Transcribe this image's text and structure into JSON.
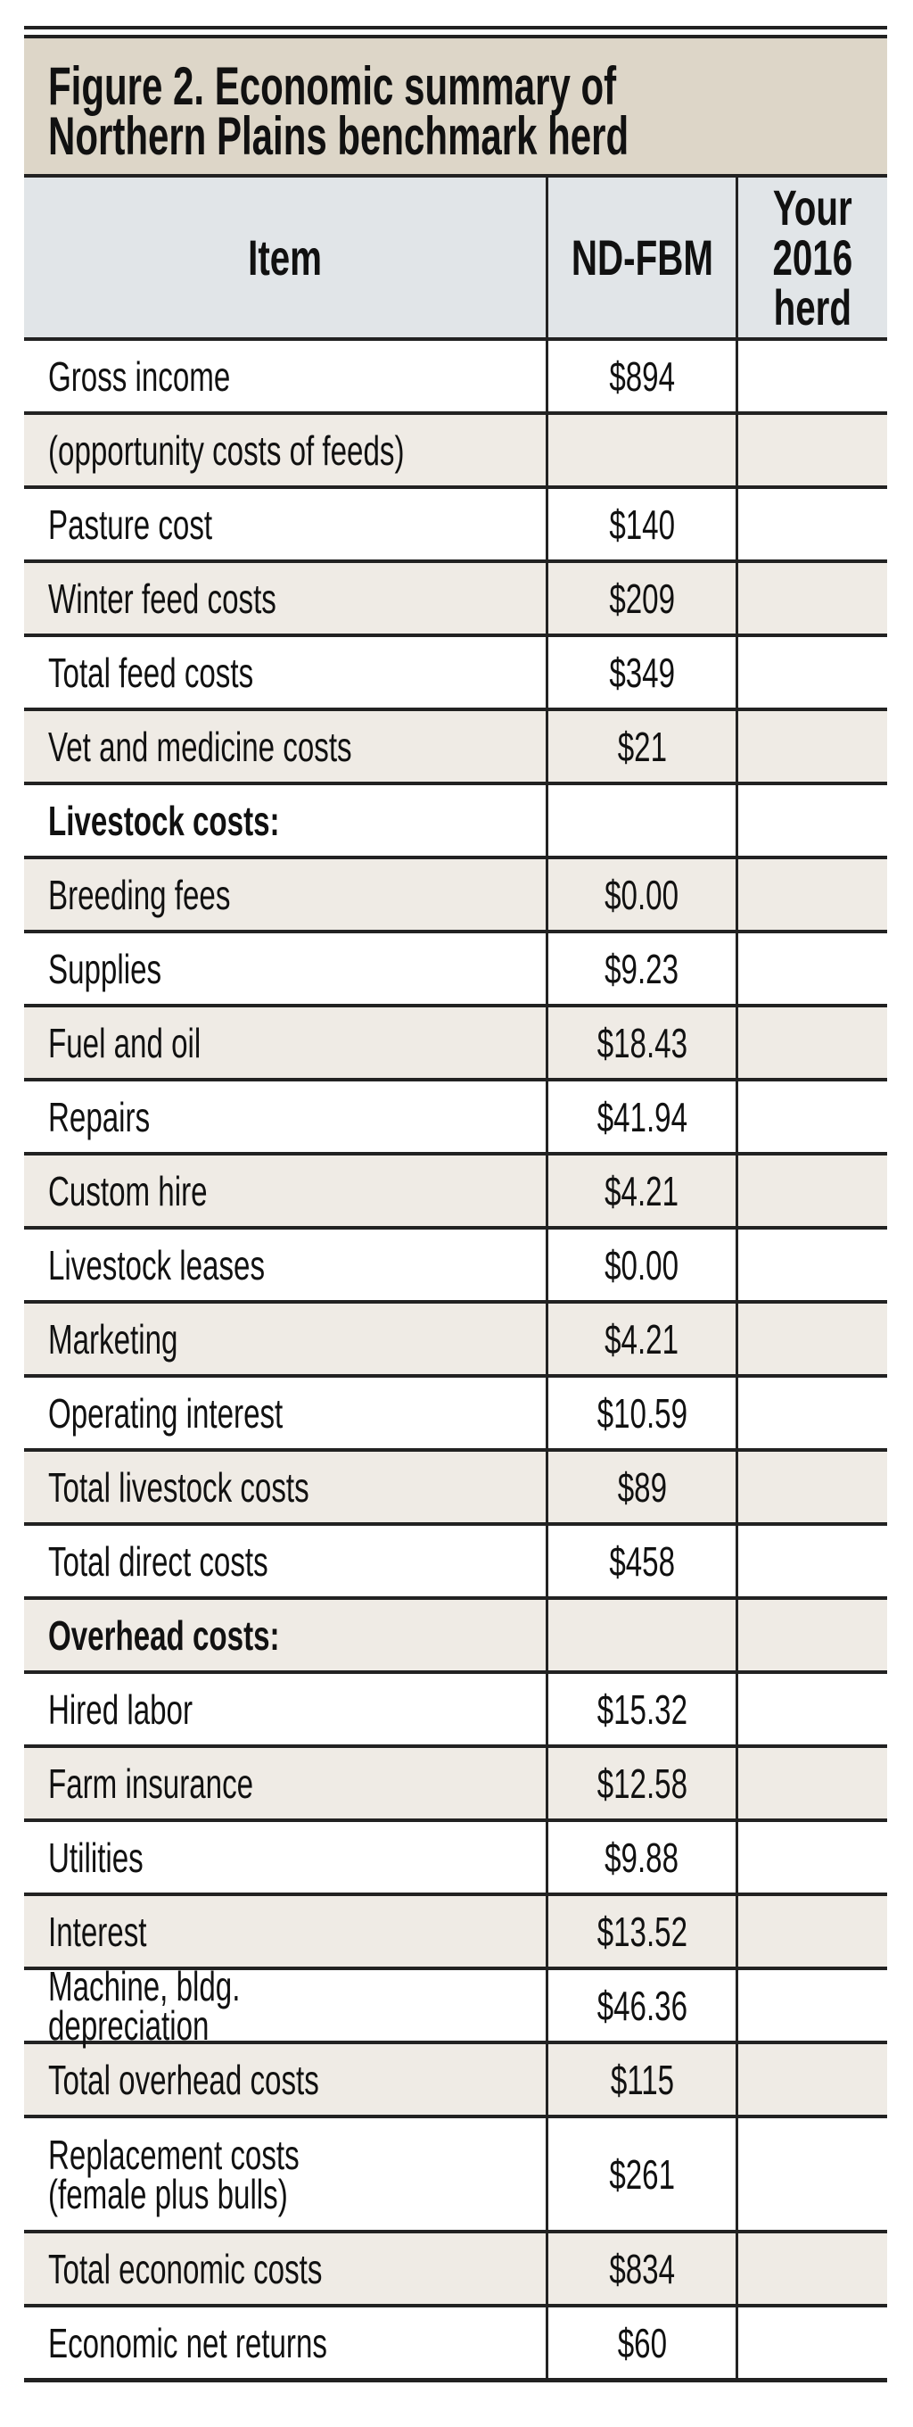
{
  "title": "Figure 2. Economic summary of\nNorthern Plains benchmark herd",
  "title_line1": "Figure 2. Economic summary of",
  "title_line2": "Northern Plains benchmark herd",
  "columns": {
    "item": "Item",
    "benchmark": "ND-FBM",
    "your_herd": "Your\n2016\nherd"
  },
  "colors": {
    "title_bg": "#ddd6c8",
    "header_bg": "#e1e5e8",
    "shaded_row": "#efebe5"
  },
  "rows": [
    {
      "label": "Gross income",
      "value": "$894"
    },
    {
      "label": "(opportunity costs of feeds)",
      "value": "",
      "shaded": true
    },
    {
      "label": "Pasture cost",
      "value": "$140"
    },
    {
      "label": "Winter feed costs",
      "value": "$209",
      "shaded": true
    },
    {
      "label": "Total feed costs",
      "value": "$349"
    },
    {
      "label": "Vet and medicine costs",
      "value": "$21",
      "shaded": true
    },
    {
      "label": "Livestock costs:",
      "value": "",
      "bold": true
    },
    {
      "label": "Breeding fees",
      "value": "$0.00",
      "shaded": true
    },
    {
      "label": "Supplies",
      "value": "$9.23"
    },
    {
      "label": "Fuel and oil",
      "value": "$18.43",
      "shaded": true
    },
    {
      "label": "Repairs",
      "value": "$41.94"
    },
    {
      "label": "Custom hire",
      "value": "$4.21",
      "shaded": true
    },
    {
      "label": "Livestock leases",
      "value": "$0.00"
    },
    {
      "label": "Marketing",
      "value": "$4.21",
      "shaded": true
    },
    {
      "label": "Operating interest",
      "value": "$10.59"
    },
    {
      "label": "Total livestock costs",
      "value": "$89",
      "shaded": true
    },
    {
      "label": "Total direct costs",
      "value": "$458"
    },
    {
      "label": "Overhead costs:",
      "value": "",
      "bold": true,
      "shaded": true
    },
    {
      "label": "Hired labor",
      "value": "$15.32"
    },
    {
      "label": "Farm insurance",
      "value": "$12.58",
      "shaded": true
    },
    {
      "label": "Utilities",
      "value": "$9.88"
    },
    {
      "label": "Interest",
      "value": "$13.52",
      "shaded": true
    },
    {
      "label": "Machine, bldg. depreciation",
      "value": "$46.36"
    },
    {
      "label": "Total overhead costs",
      "value": "$115",
      "shaded": true
    },
    {
      "label": "Replacement costs\n(female plus bulls)",
      "value": "$261",
      "tall": true
    },
    {
      "label": "Total economic costs",
      "value": "$834",
      "shaded": true
    },
    {
      "label": "Economic net returns",
      "value": "$60"
    }
  ]
}
